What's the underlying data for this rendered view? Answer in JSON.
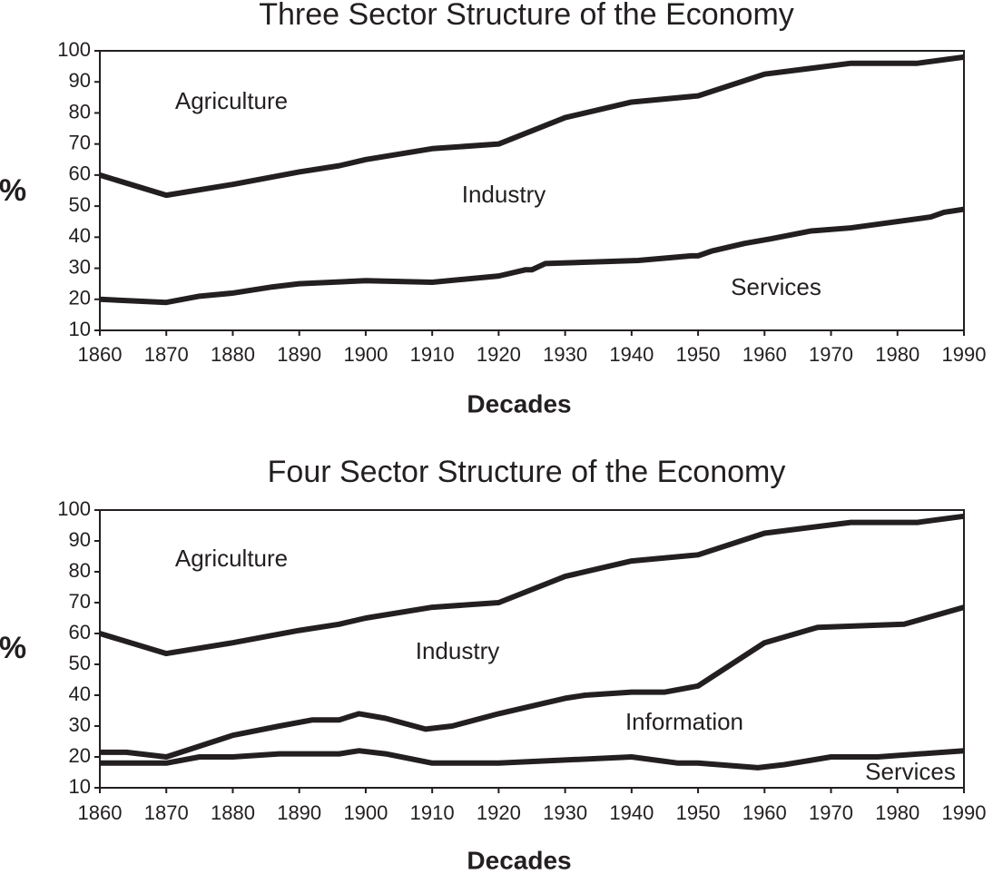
{
  "chart_data": [
    {
      "type": "line",
      "title": "Three Sector Structure of the Economy",
      "xlabel": "Decades",
      "ylabel": "%",
      "xlim": [
        1860,
        1990
      ],
      "ylim": [
        10,
        100
      ],
      "xticks": [
        1860,
        1870,
        1880,
        1890,
        1900,
        1910,
        1920,
        1930,
        1940,
        1950,
        1960,
        1970,
        1980,
        1990
      ],
      "yticks": [
        10,
        20,
        30,
        40,
        50,
        60,
        70,
        80,
        90,
        100
      ],
      "annotations": [
        "Agriculture",
        "Industry",
        "Services"
      ],
      "series": [
        {
          "color": "#231f20",
          "x": [
            1860,
            1870,
            1880,
            1890,
            1896,
            1900,
            1910,
            1920,
            1930,
            1940,
            1950,
            1960,
            1973,
            1983,
            1990
          ],
          "values": [
            60,
            53.5,
            57,
            61,
            63,
            65,
            68.5,
            70,
            78.5,
            83.5,
            85.5,
            92.5,
            96,
            96,
            98
          ]
        },
        {
          "color": "#231f20",
          "x": [
            1860,
            1870,
            1875,
            1880,
            1886,
            1890,
            1900,
            1910,
            1920,
            1924,
            1925,
            1927,
            1941,
            1949,
            1950,
            1952,
            1957,
            1961,
            1967,
            1973,
            1985,
            1987,
            1990
          ],
          "values": [
            20,
            19,
            21,
            22,
            24,
            25,
            26,
            25.5,
            27.5,
            29.5,
            29.5,
            31.5,
            32.5,
            34,
            34,
            35.5,
            38,
            39.5,
            42,
            43,
            46.5,
            48,
            49
          ]
        }
      ]
    },
    {
      "type": "line",
      "title": "Four Sector Structure of the Economy",
      "xlabel": "Decades",
      "ylabel": "%",
      "xlim": [
        1860,
        1990
      ],
      "ylim": [
        10,
        100
      ],
      "xticks": [
        1860,
        1870,
        1880,
        1890,
        1900,
        1910,
        1920,
        1930,
        1940,
        1950,
        1960,
        1970,
        1980,
        1990
      ],
      "yticks": [
        10,
        20,
        30,
        40,
        50,
        60,
        70,
        80,
        90,
        100
      ],
      "annotations": [
        "Agriculture",
        "Industry",
        "Information",
        "Services"
      ],
      "series": [
        {
          "color": "#231f20",
          "x": [
            1860,
            1870,
            1880,
            1890,
            1896,
            1900,
            1910,
            1920,
            1930,
            1940,
            1950,
            1960,
            1973,
            1983,
            1990
          ],
          "values": [
            60,
            53.5,
            57,
            61,
            63,
            65,
            68.5,
            70,
            78.5,
            83.5,
            85.5,
            92.5,
            96,
            96,
            98
          ]
        },
        {
          "color": "#231f20",
          "x": [
            1860,
            1864,
            1870,
            1875,
            1880,
            1887,
            1892,
            1896,
            1899,
            1903,
            1909,
            1913,
            1920,
            1930,
            1933,
            1940,
            1945,
            1950,
            1960,
            1968,
            1981,
            1990
          ],
          "values": [
            21.5,
            21.5,
            20,
            23.5,
            27,
            30,
            32,
            32,
            34,
            32.5,
            29,
            30,
            34,
            39,
            40,
            41,
            41,
            43,
            57,
            62,
            63,
            68.5
          ]
        },
        {
          "color": "#231f20",
          "x": [
            1860,
            1870,
            1875,
            1880,
            1887,
            1896,
            1899,
            1903,
            1910,
            1920,
            1940,
            1947,
            1950,
            1959,
            1963,
            1970,
            1977,
            1990
          ],
          "values": [
            18,
            18,
            20,
            20,
            21,
            21,
            22,
            21,
            18,
            18,
            20,
            18,
            18,
            16.5,
            17.5,
            20,
            20,
            22
          ]
        }
      ]
    }
  ]
}
